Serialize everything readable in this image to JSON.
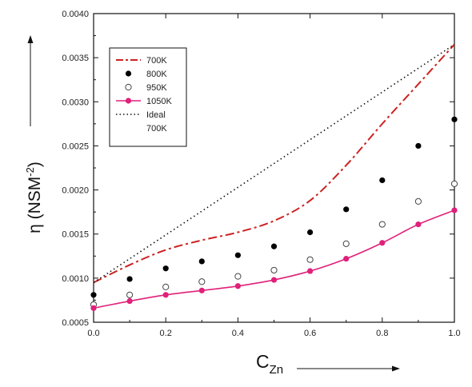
{
  "chart_data": {
    "type": "line",
    "title": "",
    "xlabel": {
      "main": "C",
      "sub": "Zn"
    },
    "ylabel": {
      "pre": "η (NSM",
      "sup": "-2",
      "post": ")"
    },
    "xlim": [
      0.0,
      1.0
    ],
    "ylim": [
      0.0005,
      0.004
    ],
    "x_ticks": [
      0.0,
      0.2,
      0.4,
      0.6,
      0.8,
      1.0
    ],
    "x_tick_labels": [
      "0.0",
      "0.2",
      "0.4",
      "0.6",
      "0.8",
      "1.0"
    ],
    "y_ticks": [
      0.0005,
      0.001,
      0.0015,
      0.002,
      0.0025,
      0.003,
      0.0035,
      0.004
    ],
    "y_tick_labels": [
      "0.0005",
      "0.0010",
      "0.0015",
      "0.0020",
      "0.0025",
      "0.0030",
      "0.0035",
      "0.0040"
    ],
    "grid": false,
    "legend_position": "top-left",
    "series": [
      {
        "name": "700K",
        "style": "dashdot",
        "color": "#cc2222",
        "x": [
          0.0,
          0.1,
          0.2,
          0.3,
          0.4,
          0.5,
          0.6,
          0.7,
          0.8,
          0.9,
          1.0
        ],
        "y": [
          0.00095,
          0.00115,
          0.00132,
          0.00143,
          0.00152,
          0.00165,
          0.00188,
          0.00228,
          0.00275,
          0.0032,
          0.00365
        ]
      },
      {
        "name": "800K",
        "style": "filled-circle",
        "color": "#000000",
        "x": [
          0.0,
          0.1,
          0.2,
          0.3,
          0.4,
          0.5,
          0.6,
          0.7,
          0.8,
          0.9,
          1.0
        ],
        "y": [
          0.00081,
          0.00099,
          0.00111,
          0.00119,
          0.00126,
          0.00136,
          0.00152,
          0.00178,
          0.00211,
          0.0025,
          0.0028
        ]
      },
      {
        "name": "950K",
        "style": "open-circle",
        "color": "#444444",
        "x": [
          0.0,
          0.1,
          0.2,
          0.3,
          0.4,
          0.5,
          0.6,
          0.7,
          0.8,
          0.9,
          1.0
        ],
        "y": [
          0.0007,
          0.00081,
          0.0009,
          0.00096,
          0.00102,
          0.00109,
          0.00121,
          0.00139,
          0.00161,
          0.00187,
          0.00207
        ]
      },
      {
        "name": "1050K",
        "style": "line-marker",
        "color": "#e0207a",
        "x": [
          0.0,
          0.1,
          0.2,
          0.3,
          0.4,
          0.5,
          0.6,
          0.7,
          0.8,
          0.9,
          1.0
        ],
        "y": [
          0.00066,
          0.00074,
          0.00081,
          0.00086,
          0.00091,
          0.00098,
          0.00108,
          0.00122,
          0.0014,
          0.00161,
          0.00177
        ]
      },
      {
        "name": "Ideal\n700K",
        "style": "dotted",
        "color": "#111111",
        "x": [
          0.0,
          1.0
        ],
        "y": [
          0.00095,
          0.00365
        ]
      }
    ]
  }
}
